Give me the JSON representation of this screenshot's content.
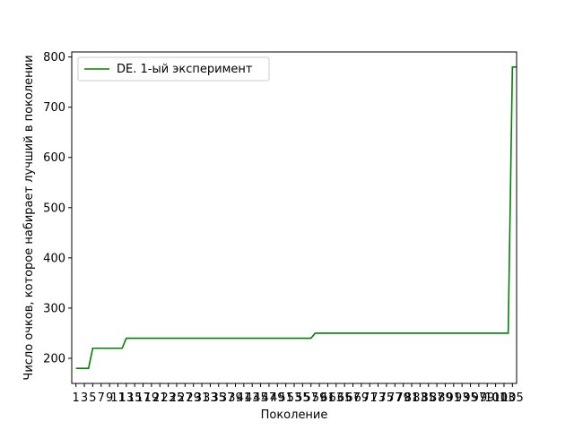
{
  "chart_data": {
    "type": "line",
    "xlabel": "Поколение",
    "ylabel": "Число очков, которое набирает лучший в поколении",
    "ylim": [
      150,
      810
    ],
    "xlim": [
      0,
      106
    ],
    "yticks": [
      200,
      300,
      400,
      500,
      600,
      700,
      800
    ],
    "x_tick_labels": [
      "1",
      "3",
      "5",
      "7",
      "9",
      "11",
      "13",
      "15",
      "17",
      "19",
      "21",
      "23",
      "25",
      "27",
      "29",
      "31",
      "33",
      "35",
      "37",
      "39",
      "41",
      "43",
      "45",
      "47",
      "49",
      "51",
      "53",
      "55",
      "57",
      "59",
      "61",
      "63",
      "65",
      "67",
      "69",
      "71",
      "73",
      "75",
      "77",
      "79",
      "81",
      "83",
      "85",
      "87",
      "89",
      "91",
      "93",
      "95",
      "97",
      "99",
      "101",
      "103",
      "105"
    ],
    "grid": false,
    "legend_position": "top-left",
    "series": [
      {
        "name": "DE. 1-ый эксперимент",
        "color": "#008000",
        "x": [
          1,
          4,
          5,
          12,
          13,
          57,
          58,
          104,
          105,
          106
        ],
        "y": [
          180,
          180,
          220,
          220,
          240,
          240,
          250,
          250,
          780,
          780
        ]
      }
    ]
  }
}
